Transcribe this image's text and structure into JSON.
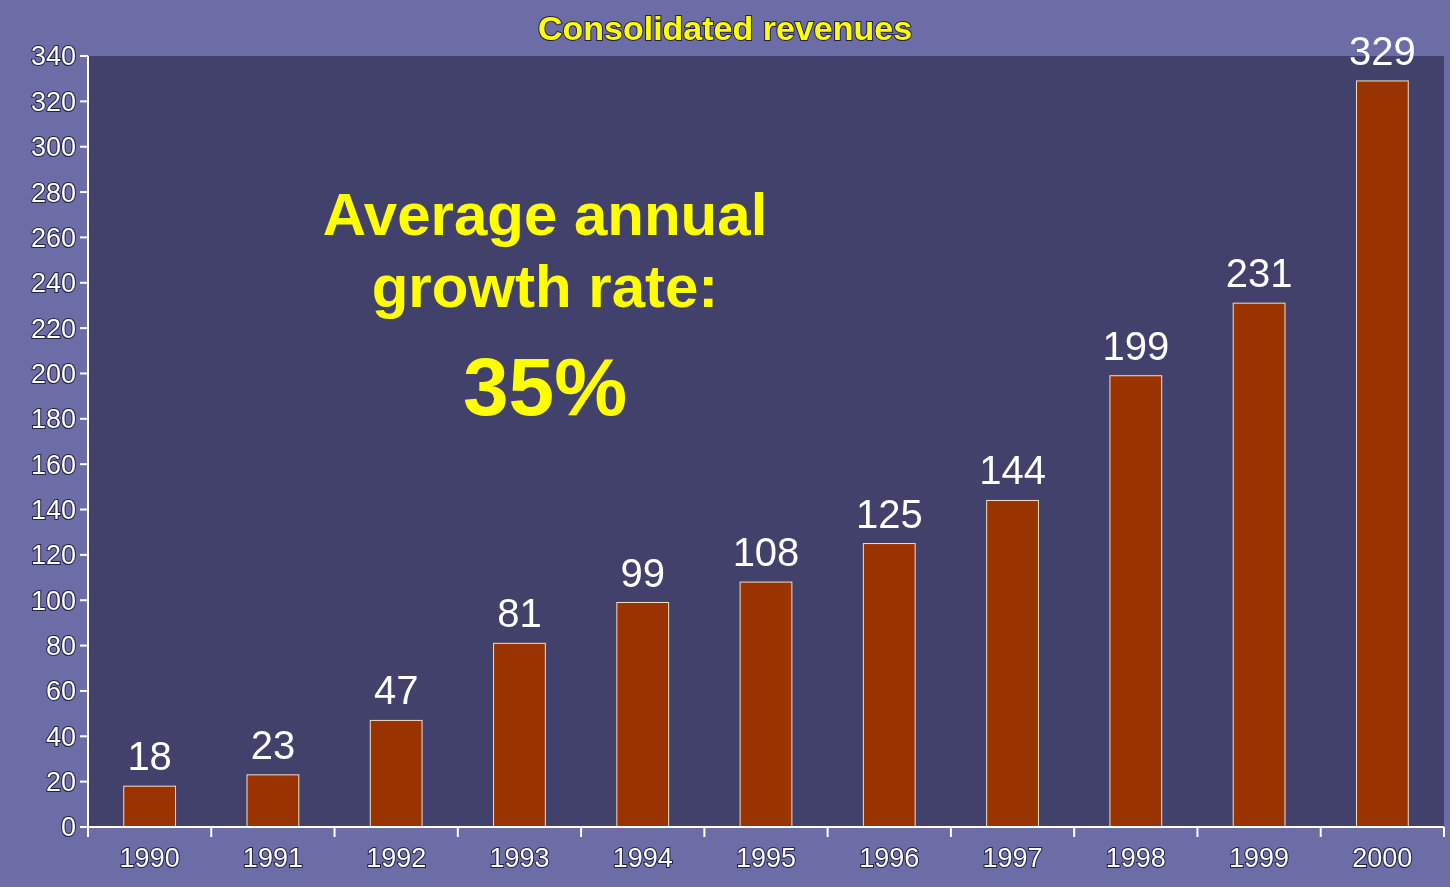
{
  "chart_data": {
    "type": "bar",
    "title": "Consolidated revenues",
    "categories": [
      "1990",
      "1991",
      "1992",
      "1993",
      "1994",
      "1995",
      "1996",
      "1997",
      "1998",
      "1999",
      "2000"
    ],
    "values": [
      18,
      23,
      47,
      81,
      99,
      108,
      125,
      144,
      199,
      231,
      329
    ],
    "color": "#993300",
    "data_labels": true,
    "ylim": [
      0,
      340
    ],
    "yticks": [
      0,
      20,
      40,
      60,
      80,
      100,
      120,
      140,
      160,
      180,
      200,
      220,
      240,
      260,
      280,
      300,
      320,
      340
    ],
    "annotations": [
      "Average annual growth rate:",
      "35%"
    ]
  }
}
